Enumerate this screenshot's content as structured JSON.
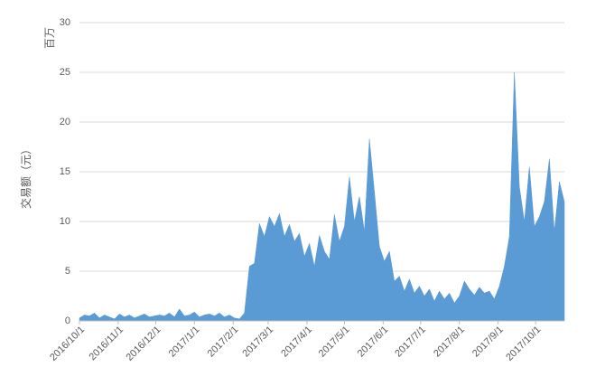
{
  "chart_data": {
    "type": "area",
    "y_label": "交易额（元）",
    "y_unit": "百万",
    "color": "#5b9bd5",
    "grid": true,
    "xlim": [
      "2016-10-01",
      "2017-10-24"
    ],
    "xticks": [
      {
        "value": "2016-10-01",
        "label": "2016/10/1"
      },
      {
        "value": "2016-11-01",
        "label": "2016/11/1"
      },
      {
        "value": "2016-12-01",
        "label": "2016/12/1"
      },
      {
        "value": "2017-01-01",
        "label": "2017/1/1"
      },
      {
        "value": "2017-02-01",
        "label": "2017/2/1"
      },
      {
        "value": "2017-03-01",
        "label": "2017/3/1"
      },
      {
        "value": "2017-04-01",
        "label": "2017/4/1"
      },
      {
        "value": "2017-05-01",
        "label": "2017/5/1"
      },
      {
        "value": "2017-06-01",
        "label": "2017/6/1"
      },
      {
        "value": "2017-07-01",
        "label": "2017/7/1"
      },
      {
        "value": "2017-08-01",
        "label": "2017/8/1"
      },
      {
        "value": "2017-09-01",
        "label": "2017/9/1"
      },
      {
        "value": "2017-10-01",
        "label": "2017/10/1"
      }
    ],
    "ylim": [
      0,
      30
    ],
    "yticks": [
      0,
      5,
      10,
      15,
      20,
      25,
      30
    ],
    "x": [
      "2016-10-01",
      "2016-10-05",
      "2016-10-09",
      "2016-10-13",
      "2016-10-17",
      "2016-10-21",
      "2016-10-25",
      "2016-10-29",
      "2016-11-02",
      "2016-11-06",
      "2016-11-10",
      "2016-11-14",
      "2016-11-18",
      "2016-11-22",
      "2016-11-26",
      "2016-11-30",
      "2016-12-04",
      "2016-12-08",
      "2016-12-12",
      "2016-12-16",
      "2016-12-20",
      "2016-12-24",
      "2016-12-28",
      "2017-01-01",
      "2017-01-05",
      "2017-01-09",
      "2017-01-13",
      "2017-01-17",
      "2017-01-21",
      "2017-01-25",
      "2017-01-29",
      "2017-02-02",
      "2017-02-06",
      "2017-02-10",
      "2017-02-14",
      "2017-02-18",
      "2017-02-22",
      "2017-02-26",
      "2017-03-02",
      "2017-03-06",
      "2017-03-10",
      "2017-03-14",
      "2017-03-18",
      "2017-03-22",
      "2017-03-26",
      "2017-03-30",
      "2017-04-03",
      "2017-04-07",
      "2017-04-11",
      "2017-04-15",
      "2017-04-19",
      "2017-04-23",
      "2017-04-27",
      "2017-05-01",
      "2017-05-05",
      "2017-05-09",
      "2017-05-13",
      "2017-05-17",
      "2017-05-21",
      "2017-05-25",
      "2017-05-29",
      "2017-06-02",
      "2017-06-06",
      "2017-06-10",
      "2017-06-14",
      "2017-06-18",
      "2017-06-22",
      "2017-06-26",
      "2017-06-30",
      "2017-07-04",
      "2017-07-08",
      "2017-07-12",
      "2017-07-16",
      "2017-07-20",
      "2017-07-24",
      "2017-07-28",
      "2017-08-01",
      "2017-08-05",
      "2017-08-09",
      "2017-08-13",
      "2017-08-17",
      "2017-08-21",
      "2017-08-25",
      "2017-08-29",
      "2017-09-02",
      "2017-09-06",
      "2017-09-10",
      "2017-09-14",
      "2017-09-18",
      "2017-09-22",
      "2017-09-26",
      "2017-09-30",
      "2017-10-04",
      "2017-10-08",
      "2017-10-12",
      "2017-10-16",
      "2017-10-20",
      "2017-10-24"
    ],
    "values": [
      0.3,
      0.6,
      0.5,
      0.8,
      0.3,
      0.6,
      0.4,
      0.2,
      0.7,
      0.4,
      0.6,
      0.3,
      0.5,
      0.7,
      0.4,
      0.5,
      0.6,
      0.5,
      0.8,
      0.4,
      1.2,
      0.5,
      0.6,
      0.9,
      0.4,
      0.6,
      0.7,
      0.5,
      0.8,
      0.4,
      0.6,
      0.3,
      0.2,
      0.8,
      5.5,
      5.8,
      9.8,
      8.5,
      10.5,
      9.5,
      10.8,
      8.5,
      9.7,
      8.0,
      8.8,
      6.5,
      7.8,
      5.5,
      8.6,
      7.0,
      6.2,
      10.7,
      8.0,
      9.5,
      14.5,
      10.0,
      12.5,
      9.0,
      18.3,
      13.0,
      7.5,
      6.0,
      7.0,
      4.0,
      4.5,
      3.0,
      4.2,
      2.8,
      3.5,
      2.5,
      3.2,
      2.0,
      3.0,
      2.2,
      2.8,
      1.8,
      2.5,
      4.0,
      3.2,
      2.6,
      3.4,
      2.8,
      3.0,
      2.2,
      3.5,
      5.5,
      8.5,
      25.0,
      13.5,
      10.0,
      15.5,
      9.5,
      10.5,
      12.0,
      16.3,
      9.0,
      14.0,
      12.0
    ]
  }
}
